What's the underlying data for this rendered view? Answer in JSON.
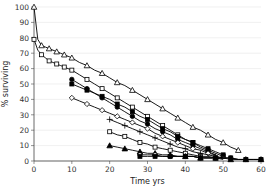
{
  "chart_data": {
    "type": "line",
    "xlabel": "Time yrs",
    "ylabel": "% surviving",
    "xlim": [
      0,
      60
    ],
    "ylim": [
      0,
      100
    ],
    "xticks": [
      0,
      10,
      20,
      30,
      40,
      50,
      60
    ],
    "yticks": [
      0,
      10,
      20,
      30,
      40,
      50,
      60,
      70,
      80,
      90,
      100
    ],
    "color": "black",
    "series": [
      {
        "marker": "triangle-open",
        "x": [
          0,
          1,
          2,
          3,
          4,
          5,
          6,
          7,
          8,
          9,
          10,
          12,
          14,
          16,
          18,
          20,
          22,
          24,
          26,
          28,
          30,
          32,
          34,
          36,
          38,
          40,
          42,
          44,
          46,
          48,
          50,
          52,
          54
        ],
        "values": [
          100,
          79,
          75,
          74,
          73,
          72,
          71,
          70,
          69,
          68,
          67,
          64,
          62,
          59,
          57,
          54,
          51,
          49,
          46,
          43,
          40,
          37,
          34,
          31,
          28,
          25,
          22,
          20,
          17,
          14,
          12,
          9,
          7
        ]
      },
      {
        "marker": "square-open",
        "x": [
          0,
          1,
          2,
          3,
          4,
          5,
          6,
          7,
          8,
          9,
          10,
          12,
          14,
          16,
          18,
          20,
          22,
          24,
          26,
          28,
          30,
          32,
          34,
          36,
          38,
          40,
          42,
          44,
          46,
          48,
          50
        ],
        "values": [
          79,
          72,
          69,
          67,
          65,
          64,
          63,
          62,
          61,
          60,
          59,
          56,
          53,
          50,
          47,
          44,
          41,
          38,
          35,
          32,
          29,
          26,
          23,
          20,
          17,
          14,
          12,
          9,
          7,
          5,
          3
        ]
      },
      {
        "marker": "circle",
        "x": [
          10,
          12,
          14,
          16,
          18,
          20,
          22,
          24,
          26,
          28,
          30,
          32,
          34,
          36,
          38,
          40,
          42,
          44,
          46,
          48
        ],
        "values": [
          53,
          50,
          47,
          44,
          41,
          38,
          35,
          32,
          29,
          26,
          24,
          21,
          19,
          17,
          14,
          12,
          10,
          8,
          6,
          4
        ]
      },
      {
        "marker": "diamond-open",
        "x": [
          10,
          12,
          14,
          16,
          18,
          20,
          22,
          24,
          26,
          28,
          30,
          32,
          34,
          36,
          38,
          40,
          42,
          44,
          46,
          48
        ],
        "values": [
          41,
          39,
          37,
          35,
          33,
          31,
          29,
          27,
          25,
          23,
          21,
          18,
          16,
          14,
          12,
          10,
          8,
          7,
          5,
          4
        ]
      },
      {
        "marker": "square",
        "x": [
          10,
          12,
          14,
          16,
          18,
          20,
          22,
          24,
          26,
          28,
          30,
          32,
          34,
          36,
          38,
          40,
          42,
          44,
          46,
          48,
          50
        ],
        "values": [
          50,
          48,
          46,
          44,
          42,
          40,
          37,
          35,
          32,
          29,
          27,
          24,
          21,
          19,
          16,
          14,
          12,
          10,
          8,
          6,
          4
        ]
      },
      {
        "marker": "plus",
        "x": [
          20,
          22,
          24,
          26,
          28,
          30,
          32,
          34,
          36,
          38,
          40,
          42,
          44,
          46,
          48,
          50
        ],
        "values": [
          27,
          25,
          23,
          21,
          19,
          17,
          15,
          13,
          11,
          9,
          8,
          6,
          5,
          4,
          3,
          2
        ]
      },
      {
        "marker": "square-open",
        "x": [
          20,
          22,
          24,
          26,
          28,
          30,
          32,
          34,
          36,
          38,
          40,
          42,
          44,
          46,
          48,
          50
        ],
        "values": [
          19,
          17,
          16,
          14,
          12,
          11,
          9,
          8,
          7,
          6,
          5,
          4,
          3,
          3,
          2,
          1
        ]
      },
      {
        "marker": "triangle",
        "x": [
          20,
          22,
          24,
          26,
          28,
          30,
          32,
          34,
          36,
          38,
          40,
          42,
          44,
          46,
          48,
          50,
          52,
          54,
          56,
          58,
          60
        ],
        "values": [
          10,
          9,
          8,
          7,
          6,
          5,
          5,
          4,
          4,
          3,
          3,
          3,
          2,
          2,
          2,
          2,
          1,
          1,
          1,
          1,
          1
        ]
      },
      {
        "marker": "circle-open",
        "x": [
          28,
          30,
          32,
          34,
          36,
          38,
          40,
          42,
          44,
          46,
          48,
          50,
          52,
          54,
          56,
          58,
          60
        ],
        "values": [
          4,
          4,
          4,
          3,
          3,
          3,
          3,
          3,
          2,
          2,
          2,
          2,
          2,
          1,
          1,
          1,
          1
        ]
      },
      {
        "marker": "square",
        "x": [
          28,
          30,
          32,
          34,
          36,
          38,
          40,
          42,
          44,
          46,
          48,
          50,
          52,
          54,
          56,
          58,
          60
        ],
        "values": [
          3,
          3,
          3,
          3,
          3,
          3,
          3,
          3,
          2,
          2,
          2,
          2,
          2,
          1,
          1,
          1,
          1
        ]
      }
    ]
  }
}
